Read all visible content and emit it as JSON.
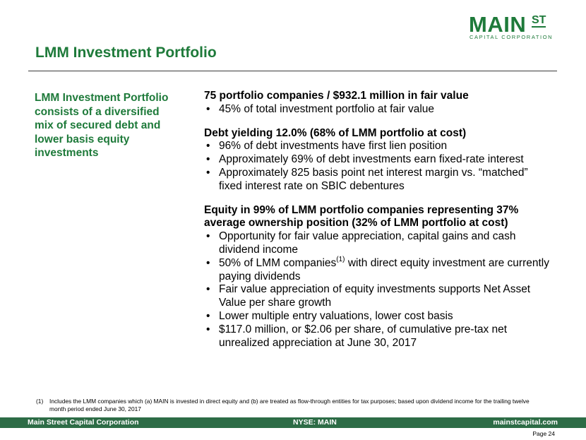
{
  "logo": {
    "word": "MAIN",
    "superscript": "ST",
    "subtitle": "CAPITAL CORPORATION"
  },
  "title": "LMM Investment Portfolio",
  "sidebar_text": "LMM Investment Portfolio consists of a diversified mix of secured debt and lower basis equity investments",
  "sections": [
    {
      "heading": "75 portfolio companies / $932.1 million in fair value",
      "bullets": [
        "45% of total investment portfolio at fair value"
      ]
    },
    {
      "heading": "Debt yielding 12.0% (68% of LMM portfolio at cost)",
      "bullets": [
        "96% of debt investments have first lien position",
        "Approximately 69% of debt investments earn fixed-rate interest",
        "Approximately 825 basis point net interest margin vs. “matched” fixed interest rate on SBIC debentures"
      ]
    },
    {
      "heading": "Equity in 99% of LMM portfolio companies representing 37% average ownership position (32% of LMM portfolio at cost)",
      "bullets": [
        "Opportunity for fair value appreciation, capital gains and cash dividend income",
        {
          "before": "50% of LMM companies",
          "sup": "(1)",
          "after": " with direct equity investment are currently paying dividends"
        },
        "Fair value appreciation of equity investments supports Net Asset Value per share growth",
        "Lower multiple entry valuations, lower cost basis",
        "$117.0 million, or $2.06 per share, of cumulative pre-tax net unrealized appreciation at June 30, 2017"
      ]
    }
  ],
  "footnote": {
    "mark": "(1)",
    "text": "Includes the LMM companies which (a) MAIN is invested in direct equity and (b) are treated as flow-through entities for tax purposes; based upon dividend income for the trailing twelve month period ended June 30, 2017"
  },
  "footer": {
    "left": "Main Street Capital Corporation",
    "center": "NYSE: MAIN",
    "right": "mainstcapital.com"
  },
  "page_label": "Page  24",
  "colors": {
    "brand_green": "#1e7a3a",
    "footer_bar": "#2d6c46"
  }
}
